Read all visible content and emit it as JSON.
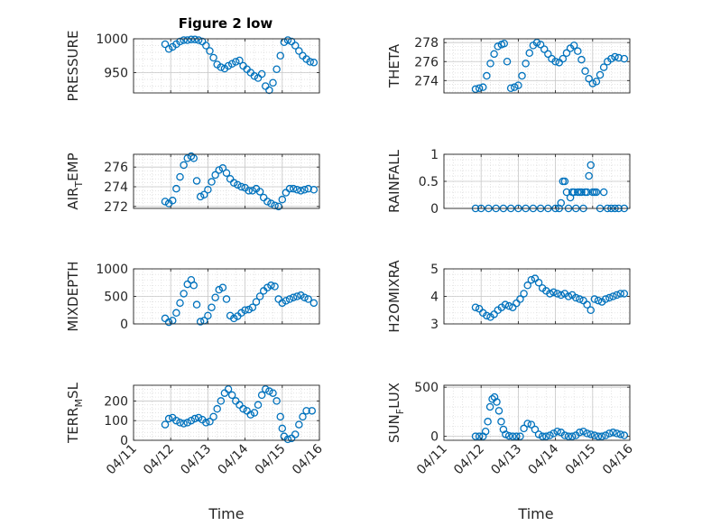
{
  "figure": {
    "title": "Figure 2 low",
    "xlabel": "Time"
  },
  "chart_data": [
    {
      "type": "scatter",
      "ylabel": "PRESSURE",
      "ylabel_sub": null,
      "ylim": [
        920,
        1000
      ],
      "yticks": [
        950,
        1000
      ],
      "yticklabels": [
        "950",
        "1000"
      ],
      "x": [
        "04/11.85",
        "04/11.95",
        "04/12.05",
        "04/12.15",
        "04/12.25",
        "04/12.35",
        "04/12.45",
        "04/12.55",
        "04/12.65",
        "04/12.75",
        "04/12.85",
        "04/12.95",
        "04/13.05",
        "04/13.15",
        "04/13.25",
        "04/13.35",
        "04/13.45",
        "04/13.55",
        "04/13.65",
        "04/13.75",
        "04/13.85",
        "04/13.95",
        "04/14.05",
        "04/14.15",
        "04/14.25",
        "04/14.35",
        "04/14.45",
        "04/14.55",
        "04/14.65",
        "04/14.75",
        "04/14.85",
        "04/14.95",
        "04/15.05",
        "04/15.15",
        "04/15.25",
        "04/15.35",
        "04/15.45",
        "04/15.55",
        "04/15.65",
        "04/15.75",
        "04/15.85"
      ],
      "y": [
        992,
        985,
        988,
        992,
        996,
        998,
        998,
        999,
        999,
        998,
        996,
        990,
        982,
        972,
        962,
        958,
        956,
        960,
        963,
        966,
        968,
        960,
        955,
        950,
        945,
        942,
        948,
        930,
        924,
        935,
        955,
        975,
        995,
        998,
        996,
        990,
        982,
        975,
        970,
        966,
        965
      ]
    },
    {
      "type": "scatter",
      "ylabel": "THETA",
      "ylabel_sub": null,
      "ylim": [
        272.7,
        278.4
      ],
      "yticks": [
        274,
        276,
        278
      ],
      "yticklabels": [
        "274",
        "276",
        "278"
      ],
      "x": [
        "04/11.85",
        "04/11.95",
        "04/12.05",
        "04/12.15",
        "04/12.25",
        "04/12.35",
        "04/12.45",
        "04/12.55",
        "04/12.62",
        "04/12.7",
        "04/12.8",
        "04/12.9",
        "04/13.0",
        "04/13.1",
        "04/13.2",
        "04/13.3",
        "04/13.4",
        "04/13.5",
        "04/13.6",
        "04/13.7",
        "04/13.8",
        "04/13.9",
        "04/14.0",
        "04/14.1",
        "04/14.2",
        "04/14.3",
        "04/14.4",
        "04/14.5",
        "04/14.6",
        "04/14.7",
        "04/14.8",
        "04/14.9",
        "04/15.0",
        "04/15.1",
        "04/15.2",
        "04/15.3",
        "04/15.4",
        "04/15.5",
        "04/15.6",
        "04/15.7",
        "04/15.85"
      ],
      "y": [
        273.1,
        273.2,
        273.3,
        274.5,
        275.8,
        276.8,
        277.6,
        277.8,
        277.9,
        276.0,
        273.2,
        273.3,
        273.5,
        274.5,
        275.8,
        276.9,
        277.7,
        278.0,
        277.8,
        277.3,
        276.8,
        276.3,
        276.0,
        275.9,
        276.3,
        276.9,
        277.4,
        277.7,
        277.1,
        276.2,
        275.0,
        274.2,
        273.7,
        273.9,
        274.6,
        275.4,
        276.0,
        276.3,
        276.5,
        276.4,
        276.3
      ]
    },
    {
      "type": "scatter",
      "ylabel": "AIR",
      "ylabel_sub": "T",
      "ylabel_tail": "EMP",
      "ylim": [
        271.8,
        277.3
      ],
      "yticks": [
        272,
        274,
        276
      ],
      "yticklabels": [
        "272",
        "274",
        "276"
      ],
      "x": [
        "04/11.85",
        "04/11.95",
        "04/12.05",
        "04/12.15",
        "04/12.25",
        "04/12.35",
        "04/12.45",
        "04/12.55",
        "04/12.62",
        "04/12.7",
        "04/12.8",
        "04/12.9",
        "04/13.0",
        "04/13.1",
        "04/13.2",
        "04/13.3",
        "04/13.4",
        "04/13.5",
        "04/13.6",
        "04/13.7",
        "04/13.8",
        "04/13.9",
        "04/14.0",
        "04/14.1",
        "04/14.2",
        "04/14.3",
        "04/14.4",
        "04/14.5",
        "04/14.6",
        "04/14.7",
        "04/14.8",
        "04/14.9",
        "04/15.0",
        "04/15.1",
        "04/15.2",
        "04/15.3",
        "04/15.4",
        "04/15.5",
        "04/15.6",
        "04/15.7",
        "04/15.85"
      ],
      "y": [
        272.5,
        272.3,
        272.6,
        273.8,
        275.0,
        276.2,
        276.9,
        277.1,
        276.9,
        274.6,
        273.0,
        273.2,
        273.7,
        274.5,
        275.2,
        275.7,
        275.9,
        275.4,
        274.8,
        274.4,
        274.2,
        274.0,
        273.9,
        273.6,
        273.6,
        273.8,
        273.5,
        272.9,
        272.5,
        272.3,
        272.1,
        272.0,
        272.7,
        273.4,
        273.8,
        273.8,
        273.7,
        273.6,
        273.7,
        273.8,
        273.7
      ]
    },
    {
      "type": "scatter",
      "ylabel": "RAINFALL",
      "ylabel_sub": null,
      "ylim": [
        0,
        1
      ],
      "yticks": [
        0,
        0.5,
        1
      ],
      "yticklabels": [
        "0",
        "0.5",
        "1"
      ],
      "x": [
        "04/11.85",
        "04/12.0",
        "04/12.2",
        "04/12.4",
        "04/12.6",
        "04/12.8",
        "04/13.0",
        "04/13.2",
        "04/13.4",
        "04/13.6",
        "04/13.8",
        "04/14.0",
        "04/14.1",
        "04/14.15",
        "04/14.2",
        "04/14.25",
        "04/14.3",
        "04/14.35",
        "04/14.4",
        "04/14.45",
        "04/14.5",
        "04/14.55",
        "04/14.6",
        "04/14.65",
        "04/14.7",
        "04/14.75",
        "04/14.8",
        "04/14.85",
        "04/14.9",
        "04/14.95",
        "04/15.0",
        "04/15.05",
        "04/15.1",
        "04/15.2",
        "04/15.3",
        "04/15.4",
        "04/15.5",
        "04/15.6",
        "04/15.7",
        "04/15.85"
      ],
      "y": [
        0,
        0,
        0,
        0,
        0,
        0,
        0,
        0,
        0,
        0,
        0,
        0,
        0,
        0.1,
        0.5,
        0.5,
        0.3,
        0,
        0.2,
        0.3,
        0.3,
        0,
        0.3,
        0.3,
        0.3,
        0,
        0.3,
        0.3,
        0.6,
        0.8,
        0.3,
        0.3,
        0.3,
        0,
        0.3,
        0,
        0,
        0,
        0,
        0
      ]
    },
    {
      "type": "scatter",
      "ylabel": "MIXDEPTH",
      "ylabel_sub": null,
      "ylim": [
        0,
        1000
      ],
      "yticks": [
        0,
        500,
        1000
      ],
      "yticklabels": [
        "0",
        "500",
        "1000"
      ],
      "x": [
        "04/11.85",
        "04/11.95",
        "04/12.05",
        "04/12.15",
        "04/12.25",
        "04/12.35",
        "04/12.45",
        "04/12.55",
        "04/12.62",
        "04/12.7",
        "04/12.8",
        "04/12.9",
        "04/13.0",
        "04/13.1",
        "04/13.2",
        "04/13.3",
        "04/13.4",
        "04/13.5",
        "04/13.6",
        "04/13.7",
        "04/13.8",
        "04/13.9",
        "04/14.0",
        "04/14.1",
        "04/14.2",
        "04/14.3",
        "04/14.4",
        "04/14.5",
        "04/14.6",
        "04/14.7",
        "04/14.8",
        "04/14.9",
        "04/15.0",
        "04/15.1",
        "04/15.2",
        "04/15.3",
        "04/15.4",
        "04/15.5",
        "04/15.6",
        "04/15.7",
        "04/15.85"
      ],
      "y": [
        100,
        30,
        60,
        200,
        380,
        550,
        720,
        800,
        700,
        350,
        40,
        60,
        150,
        300,
        480,
        620,
        660,
        450,
        150,
        100,
        140,
        200,
        250,
        260,
        300,
        400,
        500,
        600,
        660,
        700,
        680,
        450,
        380,
        420,
        450,
        480,
        500,
        520,
        480,
        450,
        380
      ]
    },
    {
      "type": "scatter",
      "ylabel": "H2OMIXRA",
      "ylabel_sub": null,
      "ylim": [
        3,
        5
      ],
      "yticks": [
        3,
        4,
        5
      ],
      "yticklabels": [
        "3",
        "4",
        "5"
      ],
      "x": [
        "04/11.85",
        "04/11.95",
        "04/12.05",
        "04/12.15",
        "04/12.25",
        "04/12.35",
        "04/12.45",
        "04/12.55",
        "04/12.65",
        "04/12.75",
        "04/12.85",
        "04/12.95",
        "04/13.05",
        "04/13.15",
        "04/13.25",
        "04/13.35",
        "04/13.45",
        "04/13.55",
        "04/13.65",
        "04/13.75",
        "04/13.85",
        "04/13.95",
        "04/14.05",
        "04/14.15",
        "04/14.25",
        "04/14.35",
        "04/14.45",
        "04/14.55",
        "04/14.65",
        "04/14.75",
        "04/14.85",
        "04/14.95",
        "04/15.05",
        "04/15.15",
        "04/15.25",
        "04/15.35",
        "04/15.45",
        "04/15.55",
        "04/15.65",
        "04/15.75",
        "04/15.85"
      ],
      "y": [
        3.6,
        3.55,
        3.4,
        3.3,
        3.25,
        3.35,
        3.5,
        3.6,
        3.7,
        3.65,
        3.6,
        3.75,
        3.9,
        4.1,
        4.4,
        4.6,
        4.65,
        4.5,
        4.3,
        4.2,
        4.1,
        4.15,
        4.1,
        4.05,
        4.1,
        4.0,
        4.05,
        3.95,
        3.9,
        3.85,
        3.7,
        3.5,
        3.9,
        3.85,
        3.8,
        3.9,
        3.95,
        4.0,
        4.05,
        4.1,
        4.1
      ]
    },
    {
      "type": "scatter",
      "ylabel": "TERR",
      "ylabel_sub": "M",
      "ylabel_tail": "SL",
      "ylim": [
        0,
        280
      ],
      "yticks": [
        0,
        100,
        200
      ],
      "yticklabels": [
        "0",
        "100",
        "200"
      ],
      "x": [
        "04/11.85",
        "04/11.95",
        "04/12.05",
        "04/12.15",
        "04/12.25",
        "04/12.35",
        "04/12.45",
        "04/12.55",
        "04/12.65",
        "04/12.75",
        "04/12.85",
        "04/12.95",
        "04/13.05",
        "04/13.15",
        "04/13.25",
        "04/13.35",
        "04/13.45",
        "04/13.55",
        "04/13.65",
        "04/13.75",
        "04/13.85",
        "04/13.95",
        "04/14.05",
        "04/14.15",
        "04/14.25",
        "04/14.35",
        "04/14.45",
        "04/14.55",
        "04/14.65",
        "04/14.75",
        "04/14.85",
        "04/14.95",
        "04/15.0",
        "04/15.05",
        "04/15.15",
        "04/15.25",
        "04/15.35",
        "04/15.45",
        "04/15.55",
        "04/15.65",
        "04/15.8"
      ],
      "y": [
        80,
        110,
        115,
        100,
        90,
        85,
        90,
        100,
        110,
        115,
        105,
        90,
        95,
        120,
        160,
        200,
        240,
        260,
        230,
        200,
        180,
        160,
        150,
        130,
        140,
        180,
        230,
        260,
        250,
        240,
        200,
        120,
        60,
        20,
        5,
        10,
        30,
        80,
        120,
        150,
        150
      ]
    },
    {
      "type": "scatter",
      "ylabel": "SUN",
      "ylabel_sub": "F",
      "ylabel_tail": "LUX",
      "ylim": [
        -40,
        520
      ],
      "yticks": [
        0,
        500
      ],
      "yticklabels": [
        "0",
        "500"
      ],
      "x": [
        "04/11.85",
        "04/11.95",
        "04/12.05",
        "04/12.12",
        "04/12.18",
        "04/12.24",
        "04/12.3",
        "04/12.36",
        "04/12.42",
        "04/12.48",
        "04/12.54",
        "04/12.6",
        "04/12.66",
        "04/12.75",
        "04/12.85",
        "04/12.95",
        "04/13.05",
        "04/13.15",
        "04/13.25",
        "04/13.35",
        "04/13.45",
        "04/13.55",
        "04/13.65",
        "04/13.75",
        "04/13.85",
        "04/13.95",
        "04/14.05",
        "04/14.15",
        "04/14.25",
        "04/14.35",
        "04/14.45",
        "04/14.55",
        "04/14.65",
        "04/14.75",
        "04/14.85",
        "04/14.95",
        "04/15.05",
        "04/15.15",
        "04/15.25",
        "04/15.35",
        "04/15.45",
        "04/15.55",
        "04/15.65",
        "04/15.75",
        "04/15.85"
      ],
      "y": [
        0,
        0,
        0,
        50,
        150,
        300,
        380,
        400,
        350,
        260,
        150,
        70,
        20,
        5,
        0,
        0,
        0,
        80,
        130,
        120,
        70,
        20,
        0,
        0,
        10,
        30,
        50,
        40,
        10,
        0,
        0,
        10,
        40,
        50,
        30,
        20,
        10,
        0,
        0,
        10,
        30,
        40,
        30,
        20,
        10
      ]
    }
  ],
  "xaxis": {
    "xlim": [
      "04/11",
      "04/16"
    ],
    "ticklabels": [
      "04/11",
      "04/12",
      "04/13",
      "04/14",
      "04/15",
      "04/16"
    ]
  }
}
